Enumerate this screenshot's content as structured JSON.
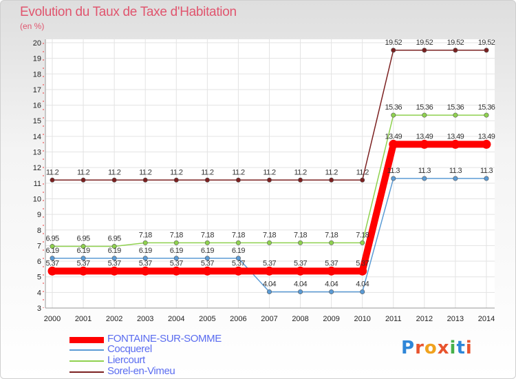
{
  "chart_data": {
    "type": "line",
    "title": "Evolution du Taux de Taxe d'Habitation",
    "subtitle": "(en %)",
    "x": [
      "2000",
      "2001",
      "2002",
      "2003",
      "2004",
      "2005",
      "2006",
      "2007",
      "2008",
      "2009",
      "2010",
      "2011",
      "2012",
      "2013",
      "2014"
    ],
    "ylim": [
      3,
      20
    ],
    "yticks": [
      3,
      4,
      5,
      6,
      7,
      8,
      9,
      10,
      11,
      12,
      13,
      14,
      15,
      16,
      17,
      18,
      19,
      20
    ],
    "grid": true,
    "legend_position": "bottom-left",
    "series": [
      {
        "name": "FONTAINE-SUR-SOMME",
        "color": "#ff0000",
        "values": [
          5.37,
          5.37,
          5.37,
          5.37,
          5.37,
          5.37,
          5.37,
          5.37,
          5.37,
          5.37,
          5.37,
          13.49,
          13.49,
          13.49,
          13.49
        ],
        "labels": [
          "5.37",
          "5.37",
          "5.37",
          "5.37",
          "5.37",
          "5.37",
          "5.37",
          "5.37",
          "5.37",
          "5.37",
          "5.37",
          "13.49",
          "13.49",
          "13.49",
          "13.49"
        ]
      },
      {
        "name": "Cocquerel",
        "color": "#5b9bd5",
        "values": [
          6.19,
          6.19,
          6.19,
          6.19,
          6.19,
          6.19,
          6.19,
          4.04,
          4.04,
          4.04,
          4.04,
          11.3,
          11.3,
          11.3,
          11.3
        ],
        "labels": [
          "6.19",
          "6.19",
          "6.19",
          "6.19",
          "6.19",
          "6.19",
          "6.19",
          "4.04",
          "4.04",
          "4.04",
          "4.04",
          "11.3",
          "11.3",
          "11.3",
          "11.3"
        ]
      },
      {
        "name": "Liercourt",
        "color": "#8fd14f",
        "values": [
          6.95,
          6.95,
          6.95,
          7.18,
          7.18,
          7.18,
          7.18,
          7.18,
          7.18,
          7.18,
          7.18,
          15.36,
          15.36,
          15.36,
          15.36
        ],
        "labels": [
          "6.95",
          "6.95",
          "6.95",
          "7.18",
          "7.18",
          "7.18",
          "7.18",
          "7.18",
          "7.18",
          "7.18",
          "7.18",
          "15.36",
          "15.36",
          "15.36",
          "15.36"
        ]
      },
      {
        "name": "Sorel-en-Vimeu",
        "color": "#7b2020",
        "values": [
          11.2,
          11.2,
          11.2,
          11.2,
          11.2,
          11.2,
          11.2,
          11.2,
          11.2,
          11.2,
          11.2,
          19.52,
          19.52,
          19.52,
          19.52
        ],
        "labels": [
          "11.2",
          "11.2",
          "11.2",
          "11.2",
          "11.2",
          "11.2",
          "11.2",
          "11.2",
          "11.2",
          "11.2",
          "11.2",
          "19.52",
          "19.52",
          "19.52",
          "19.52"
        ]
      }
    ]
  },
  "logo": {
    "letters": [
      "P",
      "r",
      "o",
      "x",
      "i",
      "t",
      "i"
    ],
    "colors": [
      "#2e86d8",
      "#e8542e",
      "#f0a21e",
      "#e8542e",
      "#46b04a",
      "#2e86d8",
      "#e8542e"
    ]
  }
}
